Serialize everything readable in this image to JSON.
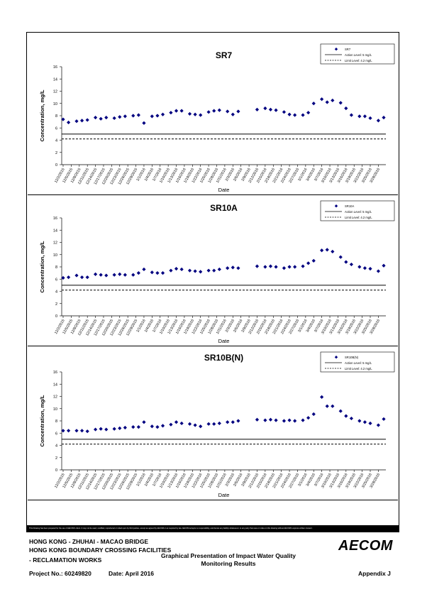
{
  "charts": [
    {
      "title": "SR7",
      "legend": {
        "series": "SR7",
        "action": "Action Level: 5 mg/L",
        "limit": "Limit Level: 4.2 mg/L"
      },
      "ylabel": "Concentration, mg/L",
      "xlabel": "Date",
      "yticks": [
        "0",
        "2",
        "4",
        "6",
        "8",
        "10",
        "12",
        "14",
        "16"
      ],
      "xticks": [
        "12/2/2015",
        "12/5/2015",
        "12/8/2015",
        "12/11/2015",
        "12/14/2015",
        "12/17/2015",
        "12/20/2015",
        "12/23/2015",
        "12/26/2015",
        "12/29/2015",
        "1/1/2016",
        "1/4/2016",
        "1/7/2016",
        "1/10/2016",
        "1/13/2016",
        "1/16/2016",
        "1/19/2016",
        "1/22/2016",
        "1/25/2016",
        "1/28/2016",
        "1/31/2016",
        "2/3/2016",
        "2/6/2016",
        "2/9/2016",
        "2/12/2016",
        "2/15/2016",
        "2/18/2016",
        "2/21/2016",
        "2/24/2016",
        "2/27/2016",
        "3/1/2016",
        "3/4/2016",
        "3/7/2016",
        "3/10/2016",
        "3/13/2016",
        "3/16/2016",
        "3/19/2016",
        "3/22/2016",
        "3/25/2016",
        "3/28/2016"
      ]
    },
    {
      "title": "SR10A",
      "legend": {
        "series": "SR10A",
        "action": "Action Level: 5 mg/L",
        "limit": "Limit Level: 4.2 mg/L"
      },
      "ylabel": "Concentration, mg/L",
      "xlabel": "Date",
      "yticks": [
        "0",
        "2",
        "4",
        "6",
        "8",
        "10",
        "12",
        "14",
        "16"
      ],
      "xticks": [
        "12/2/2015",
        "12/5/2015",
        "12/8/2015",
        "12/11/2015",
        "12/14/2015",
        "12/17/2015",
        "12/20/2015",
        "12/23/2015",
        "12/26/2015",
        "12/29/2015",
        "1/1/2016",
        "1/4/2016",
        "1/7/2016",
        "1/10/2016",
        "1/13/2016",
        "1/16/2016",
        "1/19/2016",
        "1/22/2016",
        "1/25/2016",
        "1/28/2016",
        "1/31/2016",
        "2/3/2016",
        "2/6/2016",
        "2/9/2016",
        "2/12/2016",
        "2/15/2016",
        "2/18/2016",
        "2/21/2016",
        "2/24/2016",
        "2/27/2016",
        "3/1/2016",
        "3/4/2016",
        "3/7/2016",
        "3/10/2016",
        "3/13/2016",
        "3/16/2016",
        "3/19/2016",
        "3/22/2016",
        "3/25/2016",
        "3/28/2016"
      ]
    },
    {
      "title": "SR10B(N)",
      "legend": {
        "series": "SR10B(N)",
        "action": "Action Level: 5 mg/L",
        "limit": "Limit Level: 4.2 mg/L"
      },
      "ylabel": "Concentration, mg/L",
      "xlabel": "Date",
      "yticks": [
        "0",
        "2",
        "4",
        "6",
        "8",
        "10",
        "12",
        "14",
        "16"
      ],
      "xticks": [
        "12/2/2015",
        "12/5/2015",
        "12/8/2015",
        "12/11/2015",
        "12/14/2015",
        "12/17/2015",
        "12/20/2015",
        "12/23/2015",
        "12/26/2015",
        "12/29/2015",
        "1/1/2016",
        "1/4/2016",
        "1/7/2016",
        "1/10/2016",
        "1/13/2016",
        "1/16/2016",
        "1/19/2016",
        "1/22/2016",
        "1/25/2016",
        "1/28/2016",
        "1/31/2016",
        "2/3/2016",
        "2/6/2016",
        "2/9/2016",
        "2/12/2016",
        "2/15/2016",
        "2/18/2016",
        "2/21/2016",
        "2/24/2016",
        "2/27/2016",
        "3/1/2016",
        "3/4/2016",
        "3/7/2016",
        "3/10/2016",
        "3/13/2016",
        "3/16/2016",
        "3/19/2016",
        "3/22/2016",
        "3/25/2016",
        "3/28/2016"
      ]
    }
  ],
  "chart_data": [
    {
      "type": "scatter",
      "title": "SR7",
      "xlabel": "Date",
      "ylabel": "Concentration, mg/L",
      "ylim": [
        0,
        16
      ],
      "xlim": [
        "2015-12-02",
        "2016-03-30"
      ],
      "grid": false,
      "legend_position": "top-right",
      "series": [
        {
          "name": "SR7",
          "marker": "diamond",
          "color": "#000080",
          "x": [
            "2015-12-02",
            "2015-12-04",
            "2015-12-07",
            "2015-12-09",
            "2015-12-11",
            "2015-12-14",
            "2015-12-16",
            "2015-12-18",
            "2015-12-21",
            "2015-12-23",
            "2015-12-25",
            "2015-12-28",
            "2015-12-30",
            "2016-01-01",
            "2016-01-04",
            "2016-01-06",
            "2016-01-08",
            "2016-01-11",
            "2016-01-13",
            "2016-01-15",
            "2016-01-18",
            "2016-01-20",
            "2016-01-22",
            "2016-01-25",
            "2016-01-27",
            "2016-01-29",
            "2016-02-01",
            "2016-02-03",
            "2016-02-05",
            "2016-02-12",
            "2016-02-15",
            "2016-02-17",
            "2016-02-19",
            "2016-02-22",
            "2016-02-24",
            "2016-02-26",
            "2016-02-29",
            "2016-03-02",
            "2016-03-04",
            "2016-03-07",
            "2016-03-09",
            "2016-03-11",
            "2016-03-14",
            "2016-03-16",
            "2016-03-18",
            "2016-03-21",
            "2016-03-23",
            "2016-03-25",
            "2016-03-28",
            "2016-03-30"
          ],
          "y": [
            7.4,
            6.9,
            7.1,
            7.2,
            7.3,
            7.7,
            7.5,
            7.7,
            7.6,
            7.8,
            7.9,
            8.0,
            8.1,
            6.8,
            7.9,
            8.0,
            8.2,
            8.5,
            8.8,
            8.8,
            8.3,
            8.2,
            8.1,
            8.6,
            8.8,
            8.9,
            8.7,
            8.2,
            8.7,
            9.0,
            9.2,
            9.0,
            8.9,
            8.6,
            8.2,
            8.1,
            8.1,
            8.5,
            10.0,
            10.7,
            10.2,
            10.5,
            10.1,
            9.2,
            8.1,
            7.9,
            7.9,
            7.6,
            7.2,
            7.7
          ]
        },
        {
          "name": "Action Level: 5 mg/L",
          "constant": 5
        },
        {
          "name": "Limit Level: 4.2 mg/L",
          "constant": 4.2
        }
      ]
    },
    {
      "type": "scatter",
      "title": "SR10A",
      "xlabel": "Date",
      "ylabel": "Concentration, mg/L",
      "ylim": [
        0,
        16
      ],
      "xlim": [
        "2015-12-02",
        "2016-03-30"
      ],
      "grid": false,
      "legend_position": "top-right",
      "series": [
        {
          "name": "SR10A",
          "marker": "diamond",
          "color": "#000080",
          "x": [
            "2015-12-02",
            "2015-12-04",
            "2015-12-07",
            "2015-12-09",
            "2015-12-11",
            "2015-12-14",
            "2015-12-16",
            "2015-12-18",
            "2015-12-21",
            "2015-12-23",
            "2015-12-25",
            "2015-12-28",
            "2015-12-30",
            "2016-01-01",
            "2016-01-04",
            "2016-01-06",
            "2016-01-08",
            "2016-01-11",
            "2016-01-13",
            "2016-01-15",
            "2016-01-18",
            "2016-01-20",
            "2016-01-22",
            "2016-01-25",
            "2016-01-27",
            "2016-01-29",
            "2016-02-01",
            "2016-02-03",
            "2016-02-05",
            "2016-02-12",
            "2016-02-15",
            "2016-02-17",
            "2016-02-19",
            "2016-02-22",
            "2016-02-24",
            "2016-02-26",
            "2016-02-29",
            "2016-03-02",
            "2016-03-04",
            "2016-03-07",
            "2016-03-09",
            "2016-03-11",
            "2016-03-14",
            "2016-03-16",
            "2016-03-18",
            "2016-03-21",
            "2016-03-23",
            "2016-03-25",
            "2016-03-28",
            "2016-03-30"
          ],
          "y": [
            6.2,
            6.3,
            6.6,
            6.3,
            6.3,
            6.8,
            6.7,
            6.6,
            6.7,
            6.8,
            6.7,
            6.7,
            7.0,
            7.6,
            7.1,
            7.0,
            7.0,
            7.4,
            7.7,
            7.6,
            7.4,
            7.3,
            7.2,
            7.4,
            7.4,
            7.6,
            7.8,
            7.9,
            7.8,
            8.1,
            8.0,
            8.1,
            8.0,
            7.8,
            8.0,
            8.0,
            8.1,
            8.6,
            9.0,
            10.7,
            10.8,
            10.5,
            9.6,
            8.8,
            8.4,
            8.0,
            7.8,
            7.7,
            7.3,
            8.2
          ]
        },
        {
          "name": "Action Level: 5 mg/L",
          "constant": 5
        },
        {
          "name": "Limit Level: 4.2 mg/L",
          "constant": 4.2
        }
      ]
    },
    {
      "type": "scatter",
      "title": "SR10B(N)",
      "xlabel": "Date",
      "ylabel": "Concentration, mg/L",
      "ylim": [
        0,
        16
      ],
      "xlim": [
        "2015-12-02",
        "2016-03-30"
      ],
      "grid": false,
      "legend_position": "top-right",
      "series": [
        {
          "name": "SR10B(N)",
          "marker": "diamond",
          "color": "#000080",
          "x": [
            "2015-12-02",
            "2015-12-04",
            "2015-12-07",
            "2015-12-09",
            "2015-12-11",
            "2015-12-14",
            "2015-12-16",
            "2015-12-18",
            "2015-12-21",
            "2015-12-23",
            "2015-12-25",
            "2015-12-28",
            "2015-12-30",
            "2016-01-01",
            "2016-01-04",
            "2016-01-06",
            "2016-01-08",
            "2016-01-11",
            "2016-01-13",
            "2016-01-15",
            "2016-01-18",
            "2016-01-20",
            "2016-01-22",
            "2016-01-25",
            "2016-01-27",
            "2016-01-29",
            "2016-02-01",
            "2016-02-03",
            "2016-02-05",
            "2016-02-12",
            "2016-02-15",
            "2016-02-17",
            "2016-02-19",
            "2016-02-22",
            "2016-02-24",
            "2016-02-26",
            "2016-02-29",
            "2016-03-02",
            "2016-03-04",
            "2016-03-07",
            "2016-03-09",
            "2016-03-11",
            "2016-03-14",
            "2016-03-16",
            "2016-03-18",
            "2016-03-21",
            "2016-03-23",
            "2016-03-25",
            "2016-03-28",
            "2016-03-30"
          ],
          "y": [
            6.4,
            6.4,
            6.4,
            6.4,
            6.3,
            6.6,
            6.7,
            6.6,
            6.7,
            6.8,
            6.9,
            7.0,
            7.0,
            7.8,
            7.1,
            7.0,
            7.2,
            7.4,
            7.8,
            7.6,
            7.5,
            7.3,
            7.1,
            7.5,
            7.5,
            7.6,
            7.8,
            7.8,
            8.0,
            8.2,
            8.1,
            8.2,
            8.1,
            8.0,
            8.1,
            8.0,
            8.1,
            8.5,
            9.1,
            11.9,
            10.4,
            10.4,
            9.6,
            8.8,
            8.4,
            8.0,
            7.8,
            7.6,
            7.3,
            8.3
          ]
        },
        {
          "name": "Action Level: 5 mg/L",
          "constant": 5
        },
        {
          "name": "Limit Level: 4.2 mg/L",
          "constant": 4.2
        }
      ]
    }
  ],
  "disclaimer": "This Drawing has been prepared for the use of AECOM's client. It may not be used, modified, reproduced or relied upon by third parties, except as agreed by AECOM or as required by law. AECOM accepts no responsibility, and denies any liability whatsoever, to any party that uses or relies on this drawing without AECOM's express written consent.",
  "footer": {
    "project_line1": "HONG KONG - ZHUHAI - MACAO BRIDGE",
    "project_line2": "HONG KONG BOUNDARY CROSSING FACILITIES",
    "project_line3": "- RECLAMATION WORKS",
    "heading_line1": "Graphical Presentation of Impact Water Quality",
    "heading_line2": "Monitoring Results",
    "project_no": "Project No.: 60249820",
    "date": "Date: April 2016",
    "appendix": "Appendix J",
    "logo": "AECOM"
  },
  "colors": {
    "marker": "#000080",
    "border": "#000000"
  }
}
